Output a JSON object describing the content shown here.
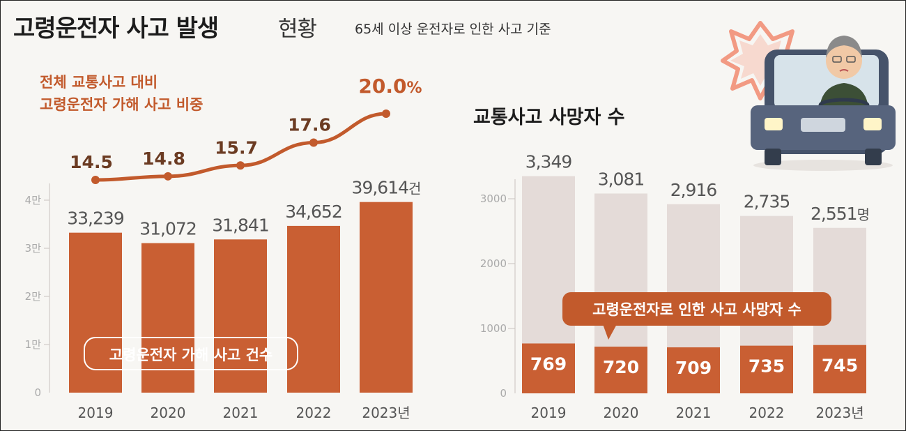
{
  "header": {
    "title_bold": "고령운전자 사고 발생",
    "title_light": "현황",
    "subtitle": "65세 이상 운전자로 인한 사고 기준"
  },
  "colors": {
    "accent": "#c95f33",
    "line": "#c25a2c",
    "label_dark": "#555555",
    "bar_bg": "#e4dbd8",
    "axis_text": "#aaaaaa"
  },
  "chart_data": [
    {
      "type": "bar",
      "categories": [
        "2019",
        "2020",
        "2021",
        "2022",
        "2023"
      ],
      "category_labels": [
        "2019",
        "2020",
        "2021",
        "2022",
        "2023년"
      ],
      "series": [
        {
          "name": "고령운전자 가해 사고 건수",
          "values": [
            33239,
            31072,
            31841,
            34652,
            39614
          ],
          "labels": [
            "33,239",
            "31,072",
            "31,841",
            "34,652",
            "39,614"
          ],
          "unit": "건"
        }
      ],
      "ylim": [
        0,
        45000
      ],
      "yticks": [
        0,
        10000,
        20000,
        30000,
        40000
      ],
      "ytick_labels": [
        "0",
        "1만",
        "2만",
        "3만",
        "4만"
      ],
      "line_overlay": {
        "name_lines": [
          "전체 교통사고 대비",
          "고령운전자 가해 사고 비중"
        ],
        "values": [
          14.5,
          14.8,
          15.7,
          17.6,
          20.0
        ],
        "labels": [
          "14.5",
          "14.8",
          "15.7",
          "17.6",
          "20.0"
        ],
        "unit": "%"
      }
    },
    {
      "type": "bar",
      "title": "교통사고 사망자 수",
      "categories": [
        "2019",
        "2020",
        "2021",
        "2022",
        "2023"
      ],
      "category_labels": [
        "2019",
        "2020",
        "2021",
        "2022",
        "2023년"
      ],
      "series": [
        {
          "values": [
            3349,
            3081,
            2916,
            2735,
            2551
          ],
          "labels": [
            "3,349",
            "3,081",
            "2,916",
            "2,735",
            "2,551"
          ],
          "unit": "명"
        },
        {
          "name": "고령운전자로 인한 사고 사망자 수",
          "values": [
            769,
            720,
            709,
            735,
            745
          ],
          "labels": [
            "769",
            "720",
            "709",
            "735",
            "745"
          ]
        }
      ],
      "ylim": [
        0,
        3400
      ],
      "yticks": [
        0,
        1000,
        2000,
        3000
      ],
      "ytick_labels": [
        "0",
        "1000",
        "2000",
        "3000"
      ]
    }
  ]
}
